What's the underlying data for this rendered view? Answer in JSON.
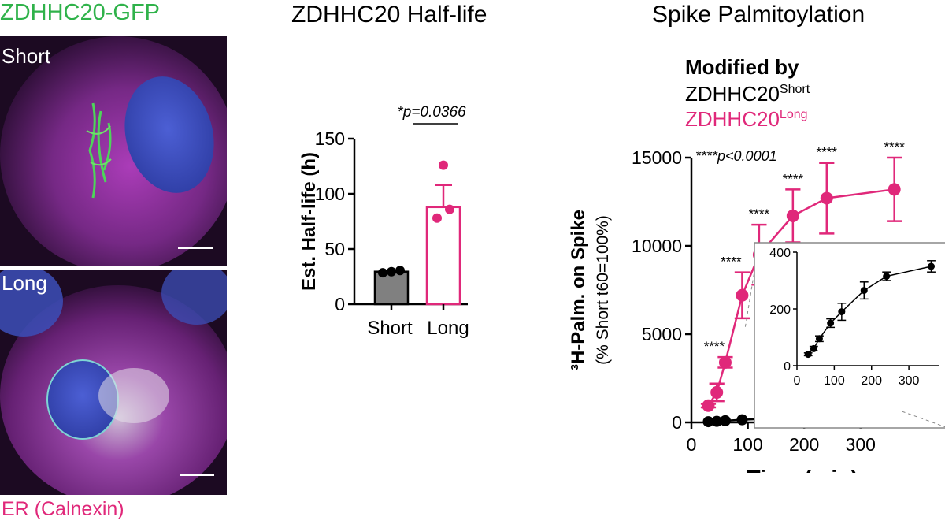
{
  "panels": {
    "left_title": "ZDHHC20-GFP",
    "left_label_short": "Short",
    "left_label_long": "Long",
    "left_caption": "ER (Calnexin)",
    "middle_title": "ZDHHC20 Half-life",
    "right_title": "Spike Palmitoylation"
  },
  "colors": {
    "green": "#2fb24a",
    "magenta": "#e0287a",
    "nucleus": "#3f55c8",
    "grey_bar": "#808080"
  },
  "chart_data": [
    {
      "type": "bar",
      "ylabel": "Est. Half-life (h)",
      "categories": [
        "Short",
        "Long"
      ],
      "values": [
        29.5,
        88
      ],
      "errors": [
        0.5,
        20
      ],
      "points": [
        [
          28.5,
          29.5,
          30.5
        ],
        [
          126,
          78,
          86
        ]
      ],
      "bar_colors": [
        "#808080",
        "#ffffff"
      ],
      "edge_colors": [
        "#000000",
        "#e0287a"
      ],
      "ylim": [
        0,
        150
      ],
      "yticks": [
        0,
        50,
        100,
        150
      ],
      "annotation": "*p=0.0366"
    },
    {
      "type": "line",
      "ylabel": "³H-Palm. on Spike",
      "ylabel2": "(% Short t60=100%)",
      "xlabel": "Time (min)",
      "xlim": [
        0,
        380
      ],
      "ylim": [
        0,
        15000
      ],
      "xticks": [
        0,
        100,
        200,
        300
      ],
      "yticks": [
        0,
        5000,
        10000,
        15000
      ],
      "legend_title": "Modified by",
      "legend_entries": [
        {
          "base": "ZDHHC20",
          "sup": "Short"
        },
        {
          "base": "ZDHHC20",
          "sup": "Long"
        }
      ],
      "annotation": "****p<0.0001",
      "sig_marker": "****",
      "series": [
        {
          "x": [
            30,
            45,
            60,
            90,
            120,
            180,
            240,
            360
          ],
          "y": [
            40,
            60,
            95,
            150,
            190,
            265,
            315,
            350
          ],
          "err": [
            5,
            8,
            10,
            15,
            30,
            30,
            15,
            20
          ]
        },
        {
          "x": [
            30,
            45,
            60,
            90,
            120,
            180,
            240,
            360
          ],
          "y": [
            950,
            1700,
            3400,
            7200,
            9500,
            11700,
            12700,
            13200
          ],
          "err": [
            100,
            500,
            300,
            1300,
            1700,
            1500,
            2000,
            1800
          ]
        }
      ],
      "inset": {
        "xlim": [
          0,
          380
        ],
        "ylim": [
          0,
          400
        ],
        "xticks": [
          0,
          100,
          200,
          300
        ],
        "yticks": [
          0,
          200,
          400
        ]
      }
    }
  ]
}
